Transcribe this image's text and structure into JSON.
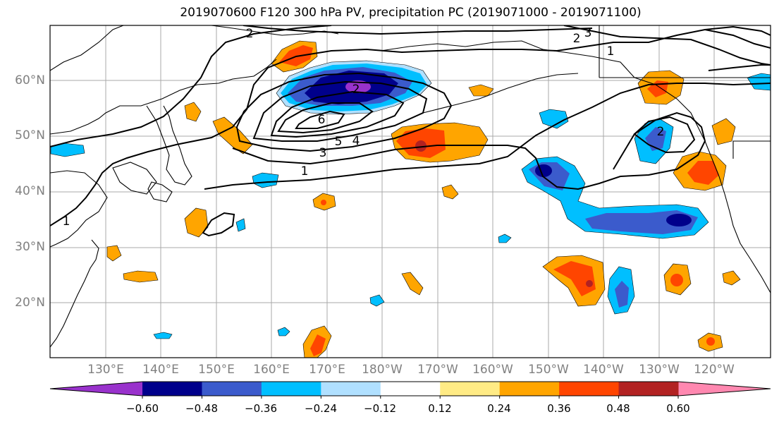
{
  "title": "2019070600 F120 300 hPa PV, precipitation PC (2019071000 - 2019071100)",
  "lat_labels": [
    "60°N",
    "50°N",
    "40°N",
    "30°N",
    "20°N"
  ],
  "lon_labels": [
    "130°E",
    "140°E",
    "150°E",
    "160°E",
    "170°E",
    "180°W",
    "170°W",
    "160°W",
    "150°W",
    "140°W",
    "130°W",
    "120°W"
  ],
  "contour_labels": [
    "1",
    "1",
    "2",
    "2",
    "3",
    "3",
    "4",
    "5",
    "6",
    "2",
    "1",
    "2"
  ],
  "colorbar": {
    "colors": [
      "#9932cc",
      "#00008b",
      "#3b5bcc",
      "#00bfff",
      "#b0e0ff",
      "#ffffff",
      "#ffeb85",
      "#ffa500",
      "#ff4500",
      "#b22222",
      "#ff88b0"
    ],
    "tick_labels": [
      "−0.60",
      "−0.48",
      "−0.36",
      "−0.24",
      "−0.12",
      "0.12",
      "0.24",
      "0.36",
      "0.48",
      "0.60"
    ]
  },
  "colors": {
    "coast": "#000000",
    "grid": "#a9a9a9",
    "frame": "#000000"
  }
}
